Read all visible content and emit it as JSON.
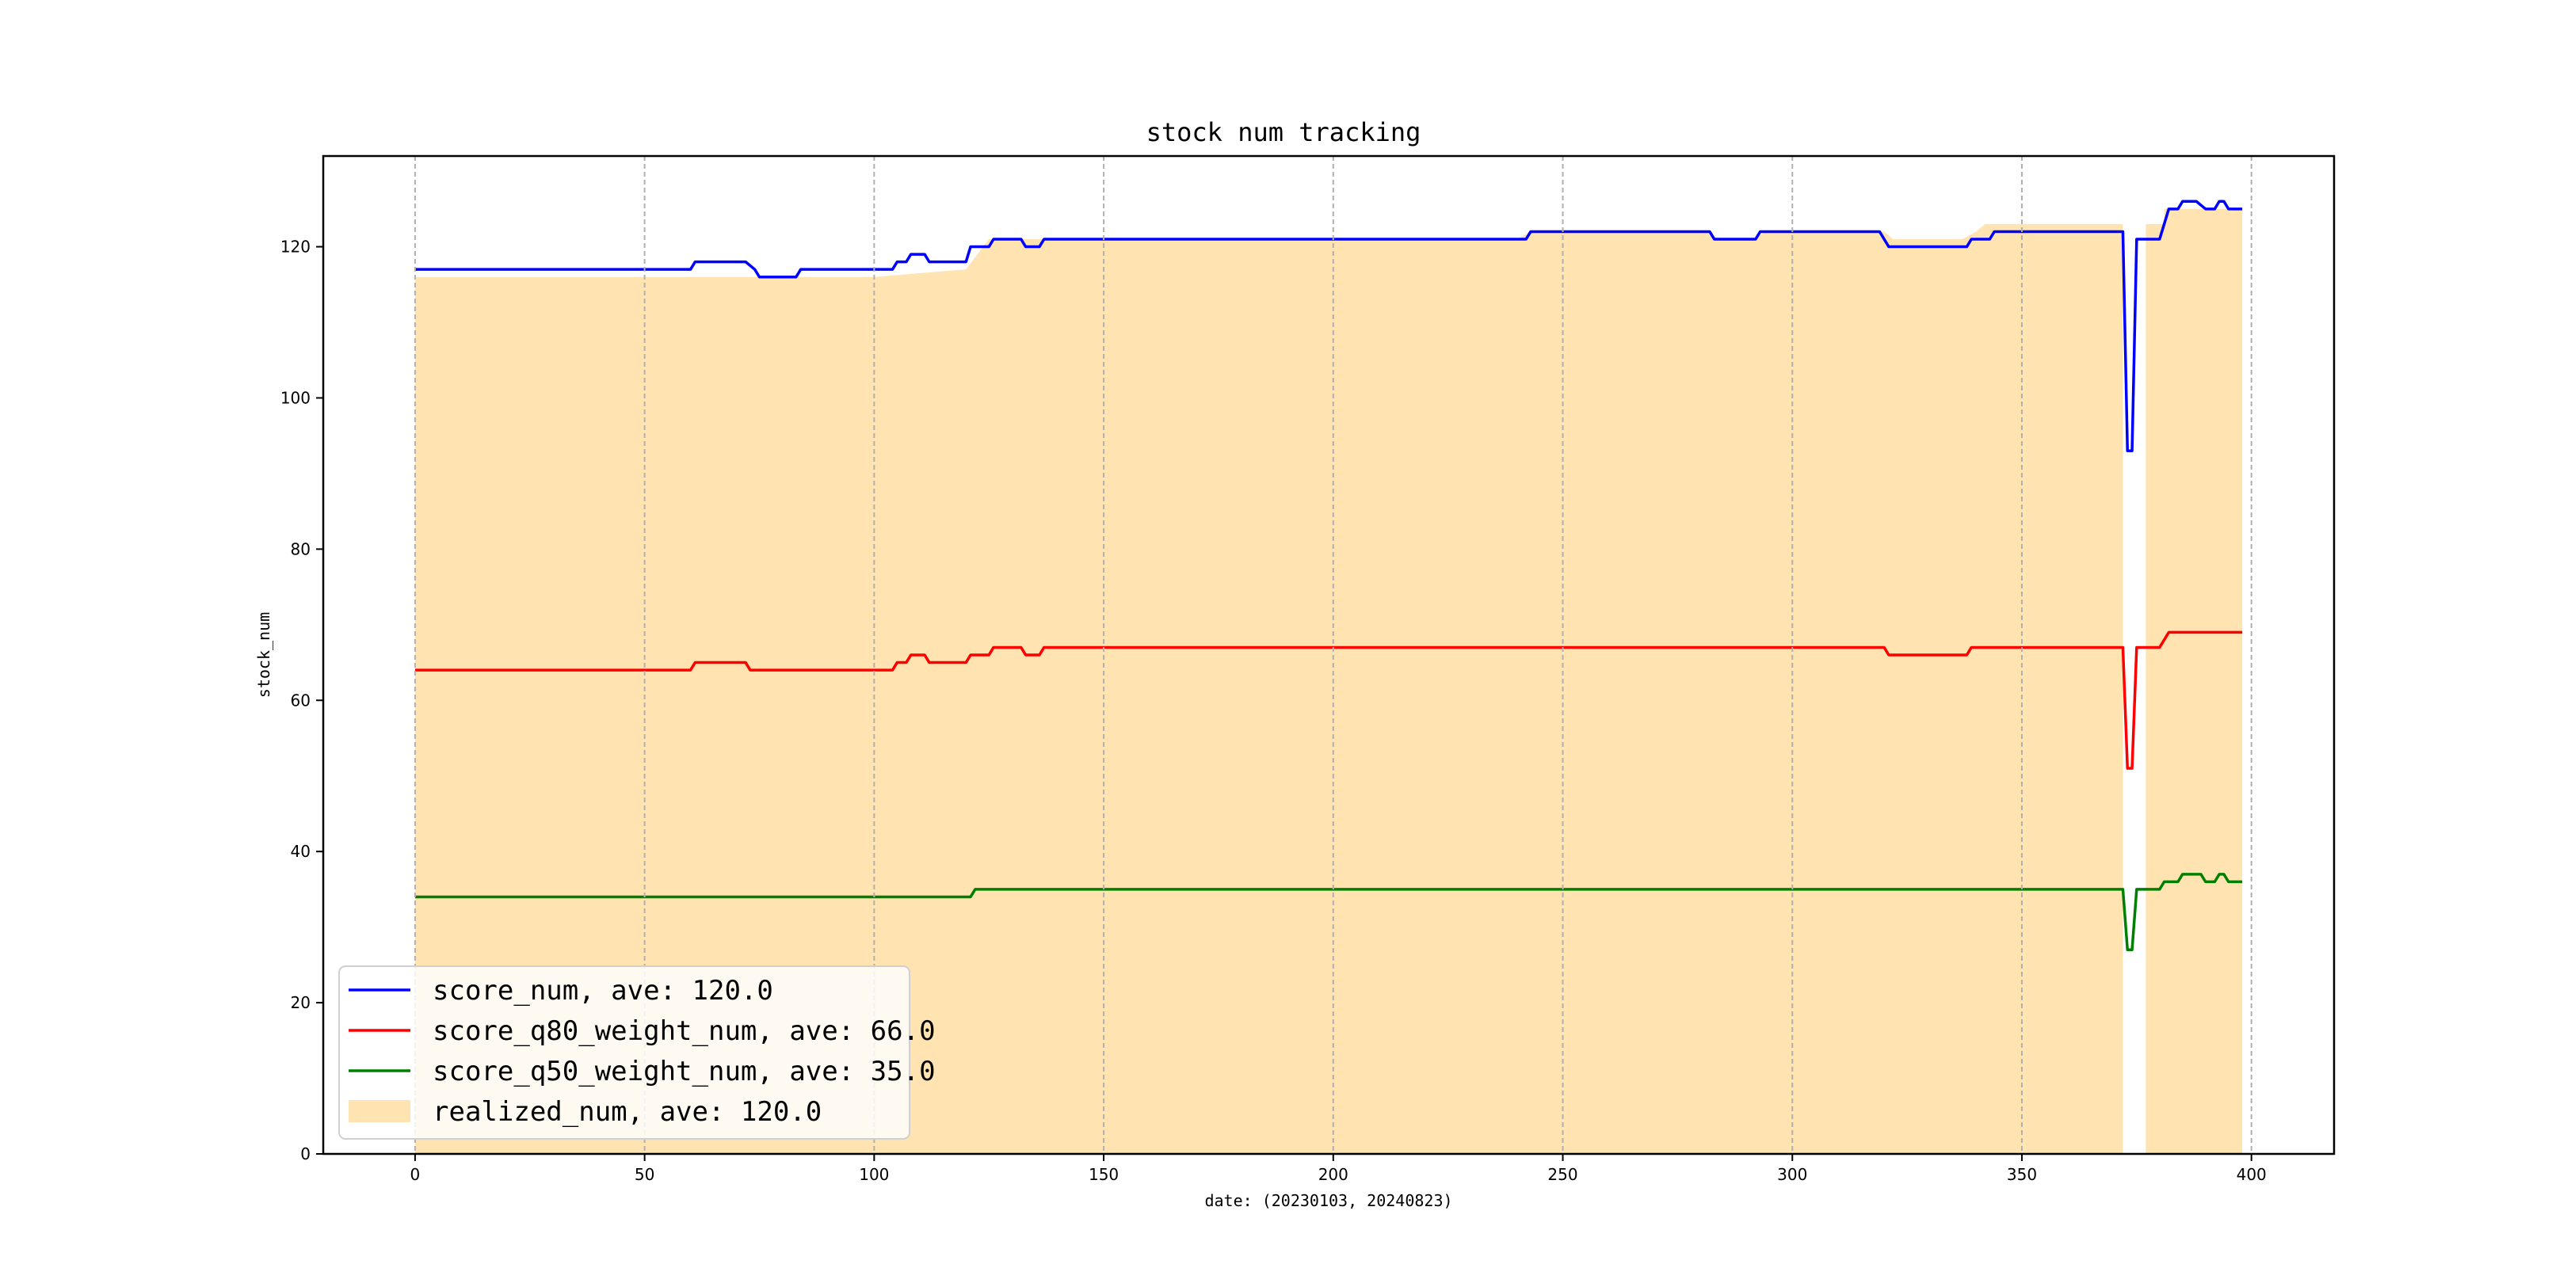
{
  "chart_data": {
    "type": "line",
    "title": "stock num tracking",
    "xlabel": "date: (20230103, 20240823)",
    "ylabel": "stock_num",
    "xlim": [
      -20,
      418
    ],
    "ylim": [
      0,
      132
    ],
    "x_ticks": [
      0,
      50,
      100,
      150,
      200,
      250,
      300,
      350,
      400
    ],
    "y_ticks": [
      0,
      20,
      40,
      60,
      80,
      100,
      120
    ],
    "grid": "x-dashed",
    "legend_position": "lower-left",
    "area_series": {
      "name": "realized_num, ave: 120.0",
      "color": "#ffe3b0",
      "points": [
        [
          0,
          116
        ],
        [
          60,
          116
        ],
        [
          80,
          116
        ],
        [
          100,
          116
        ],
        [
          120,
          117
        ],
        [
          125,
          121
        ],
        [
          135,
          121
        ],
        [
          150,
          121
        ],
        [
          240,
          121
        ],
        [
          243,
          122
        ],
        [
          281,
          122
        ],
        [
          284,
          121
        ],
        [
          292,
          121
        ],
        [
          294,
          122
        ],
        [
          320,
          122
        ],
        [
          322,
          121
        ],
        [
          337,
          121
        ],
        [
          340,
          122
        ],
        [
          342,
          123
        ],
        [
          372,
          123
        ],
        [
          372,
          0
        ],
        [
          377,
          0
        ],
        [
          377,
          123
        ],
        [
          381,
          123
        ],
        [
          381,
          125
        ],
        [
          398,
          125
        ],
        [
          398,
          0
        ]
      ]
    },
    "series": [
      {
        "name": "score_num, ave: 120.0",
        "color": "#0000ff",
        "points": [
          [
            0,
            117
          ],
          [
            60,
            117
          ],
          [
            61,
            118
          ],
          [
            72,
            118
          ],
          [
            74,
            117
          ],
          [
            75,
            116
          ],
          [
            83,
            116
          ],
          [
            84,
            117
          ],
          [
            104,
            117
          ],
          [
            105,
            118
          ],
          [
            107,
            118
          ],
          [
            108,
            119
          ],
          [
            111,
            119
          ],
          [
            112,
            118
          ],
          [
            120,
            118
          ],
          [
            121,
            120
          ],
          [
            125,
            120
          ],
          [
            126,
            121
          ],
          [
            132,
            121
          ],
          [
            133,
            120
          ],
          [
            136,
            120
          ],
          [
            137,
            121
          ],
          [
            242,
            121
          ],
          [
            243,
            122
          ],
          [
            282,
            122
          ],
          [
            283,
            121
          ],
          [
            292,
            121
          ],
          [
            293,
            122
          ],
          [
            319,
            122
          ],
          [
            320,
            121
          ],
          [
            321,
            120
          ],
          [
            338,
            120
          ],
          [
            339,
            121
          ],
          [
            343,
            121
          ],
          [
            344,
            122
          ],
          [
            372,
            122
          ],
          [
            373,
            93
          ],
          [
            374,
            93
          ],
          [
            375,
            121
          ],
          [
            380,
            121
          ],
          [
            382,
            125
          ],
          [
            384,
            125
          ],
          [
            385,
            126
          ],
          [
            388,
            126
          ],
          [
            390,
            125
          ],
          [
            392,
            125
          ],
          [
            393,
            126
          ],
          [
            394,
            126
          ],
          [
            395,
            125
          ],
          [
            398,
            125
          ]
        ]
      },
      {
        "name": "score_q80_weight_num, ave: 66.0",
        "color": "#ff0000",
        "points": [
          [
            0,
            64
          ],
          [
            60,
            64
          ],
          [
            61,
            65
          ],
          [
            72,
            65
          ],
          [
            73,
            64
          ],
          [
            104,
            64
          ],
          [
            105,
            65
          ],
          [
            107,
            65
          ],
          [
            108,
            66
          ],
          [
            111,
            66
          ],
          [
            112,
            65
          ],
          [
            120,
            65
          ],
          [
            121,
            66
          ],
          [
            125,
            66
          ],
          [
            126,
            67
          ],
          [
            132,
            67
          ],
          [
            133,
            66
          ],
          [
            136,
            66
          ],
          [
            137,
            67
          ],
          [
            320,
            67
          ],
          [
            321,
            66
          ],
          [
            338,
            66
          ],
          [
            339,
            67
          ],
          [
            372,
            67
          ],
          [
            373,
            51
          ],
          [
            374,
            51
          ],
          [
            375,
            67
          ],
          [
            380,
            67
          ],
          [
            382,
            69
          ],
          [
            398,
            69
          ]
        ]
      },
      {
        "name": "score_q50_weight_num, ave: 35.0",
        "color": "#008000",
        "points": [
          [
            0,
            34
          ],
          [
            121,
            34
          ],
          [
            122,
            35
          ],
          [
            372,
            35
          ],
          [
            373,
            27
          ],
          [
            374,
            27
          ],
          [
            375,
            35
          ],
          [
            380,
            35
          ],
          [
            381,
            36
          ],
          [
            384,
            36
          ],
          [
            385,
            37
          ],
          [
            389,
            37
          ],
          [
            390,
            36
          ],
          [
            392,
            36
          ],
          [
            393,
            37
          ],
          [
            394,
            37
          ],
          [
            395,
            36
          ],
          [
            398,
            36
          ]
        ]
      }
    ]
  }
}
